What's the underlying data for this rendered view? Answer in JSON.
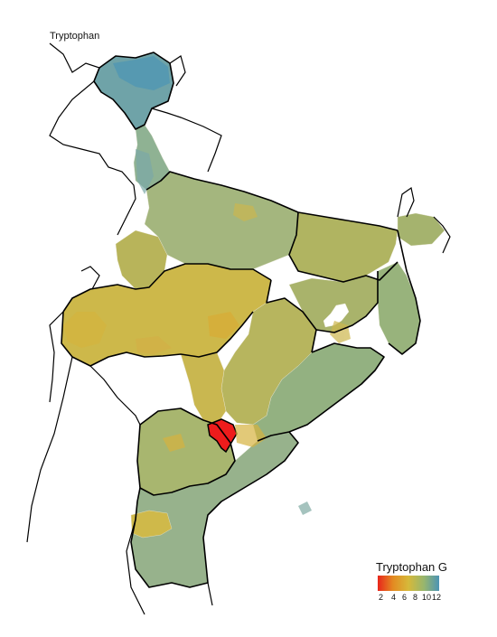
{
  "title": "Tryptophan",
  "legend": {
    "title": "Tryptophan G",
    "ticks": [
      "2",
      "4",
      "6",
      "8",
      "10",
      "12"
    ],
    "gradient": [
      "#e8251b",
      "#e38b22",
      "#d6b93a",
      "#98b66d",
      "#4c94b5"
    ]
  },
  "colors": {
    "border": "#000000",
    "district_border": "#e9e6d4",
    "highlight": "#ee1c1c",
    "missing": "#ffffff"
  }
}
